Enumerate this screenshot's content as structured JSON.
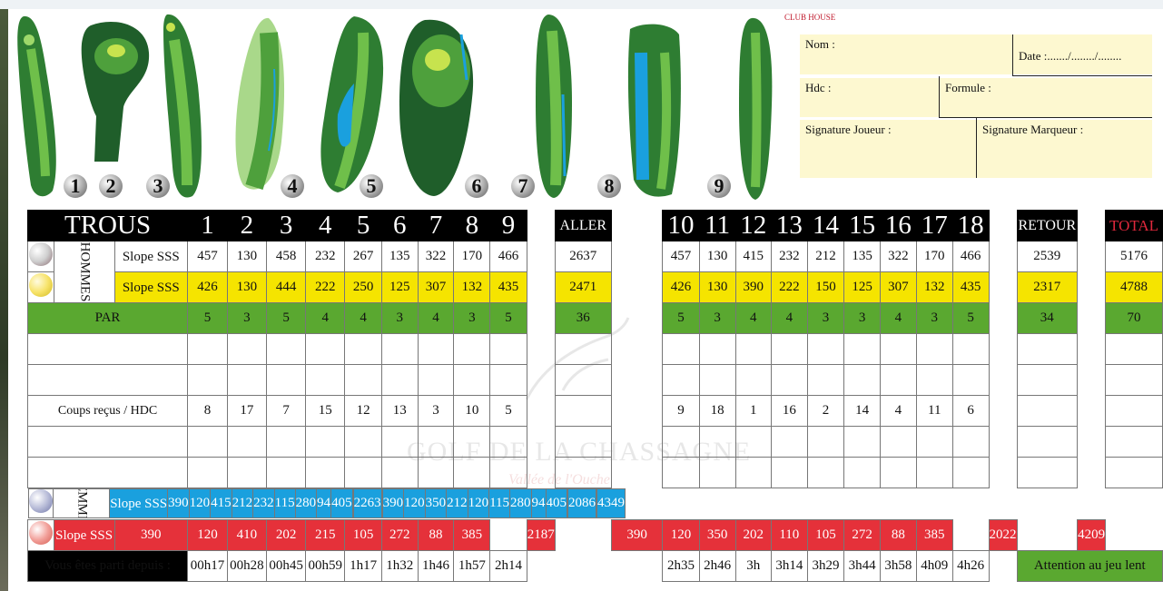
{
  "hole_maps": {
    "club_house_label": "CLUB HOUSE",
    "numbers": [
      "1",
      "2",
      "3",
      "4",
      "5",
      "6",
      "7",
      "8",
      "9"
    ]
  },
  "form": {
    "nom": "Nom :",
    "date": "Date :......./......../........",
    "hdc": "Hdc :",
    "formule": "Formule :",
    "sig_joueur": "Signature Joueur :",
    "sig_marqueur": "Signature Marqueur :"
  },
  "header": {
    "trous": "TROUS",
    "front": [
      "1",
      "2",
      "3",
      "4",
      "5",
      "6",
      "7",
      "8",
      "9"
    ],
    "aller": "ALLER",
    "back": [
      "10",
      "11",
      "12",
      "13",
      "14",
      "15",
      "16",
      "17",
      "18"
    ],
    "retour": "RETOUR",
    "total": "TOTAL"
  },
  "hommes": {
    "label": "HOMMES",
    "white": {
      "label": "Slope SSS",
      "front": [
        "457",
        "130",
        "458",
        "232",
        "267",
        "135",
        "322",
        "170",
        "466"
      ],
      "aller": "2637",
      "back": [
        "457",
        "130",
        "415",
        "232",
        "212",
        "135",
        "322",
        "170",
        "466"
      ],
      "retour": "2539",
      "total": "5176"
    },
    "yellow": {
      "label": "Slope SSS",
      "front": [
        "426",
        "130",
        "444",
        "222",
        "250",
        "125",
        "307",
        "132",
        "435"
      ],
      "aller": "2471",
      "back": [
        "426",
        "130",
        "390",
        "222",
        "150",
        "125",
        "307",
        "132",
        "435"
      ],
      "retour": "2317",
      "total": "4788"
    }
  },
  "par": {
    "label": "PAR",
    "front": [
      "5",
      "3",
      "5",
      "4",
      "4",
      "3",
      "4",
      "3",
      "5"
    ],
    "aller": "36",
    "back": [
      "5",
      "3",
      "4",
      "4",
      "3",
      "3",
      "4",
      "3",
      "5"
    ],
    "retour": "34",
    "total": "70"
  },
  "coups": {
    "label": "Coups reçus / HDC",
    "front": [
      "8",
      "17",
      "7",
      "15",
      "12",
      "13",
      "3",
      "10",
      "5"
    ],
    "back": [
      "9",
      "18",
      "1",
      "16",
      "2",
      "14",
      "4",
      "11",
      "6"
    ]
  },
  "femmes": {
    "label": "FEMMES",
    "blue": {
      "label": "Slope SSS",
      "front": [
        "390",
        "120",
        "415",
        "212",
        "232",
        "115",
        "280",
        "94",
        "405"
      ],
      "aller": "2263",
      "back": [
        "390",
        "120",
        "350",
        "212",
        "120",
        "115",
        "280",
        "94",
        "405"
      ],
      "retour": "2086",
      "total": "4349"
    },
    "red": {
      "label": "Slope SSS",
      "front": [
        "390",
        "120",
        "410",
        "202",
        "215",
        "105",
        "272",
        "88",
        "385"
      ],
      "aller": "2187",
      "back": [
        "390",
        "120",
        "350",
        "202",
        "110",
        "105",
        "272",
        "88",
        "385"
      ],
      "retour": "2022",
      "total": "4209"
    }
  },
  "start": {
    "label": "Vous êtes parti depuis :",
    "front": [
      "00h17",
      "00h28",
      "00h45",
      "00h59",
      "1h17",
      "1h32",
      "1h46",
      "1h57",
      "2h14"
    ],
    "back": [
      "2h35",
      "2h46",
      "3h",
      "3h14",
      "3h29",
      "3h44",
      "3h58",
      "4h09",
      "4h26"
    ],
    "warning": "Attention au jeu lent"
  },
  "watermark": {
    "title": "GOLF DE LA CHASSAGNE",
    "subtitle": "Vallée de l'Ouche"
  },
  "colors": {
    "yellow": "#f5e400",
    "green": "#5aa830",
    "blue": "#1aa0de",
    "red": "#e5313a",
    "black": "#000000",
    "form_bg": "#fdf8d0"
  }
}
